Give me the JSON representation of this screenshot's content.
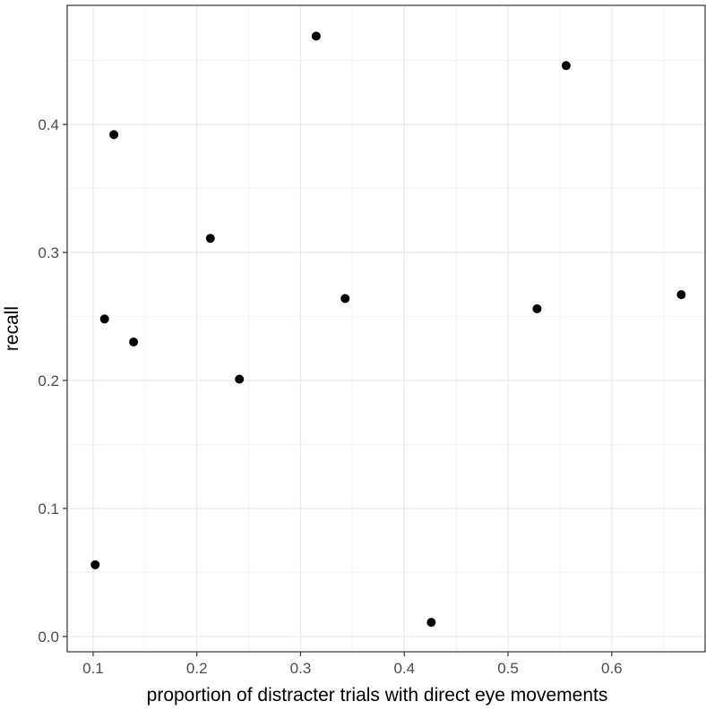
{
  "chart_data": {
    "type": "scatter",
    "xlabel": "proportion of distracter trials with direct eye movements",
    "ylabel": "recall",
    "xlim": [
      0.075,
      0.69
    ],
    "ylim": [
      -0.012,
      0.493
    ],
    "x_ticks": [
      0.1,
      0.2,
      0.3,
      0.4,
      0.5,
      0.6
    ],
    "x_tick_labels": [
      "0.1",
      "0.2",
      "0.3",
      "0.4",
      "0.5",
      "0.6"
    ],
    "y_ticks": [
      0.0,
      0.1,
      0.2,
      0.3,
      0.4
    ],
    "y_tick_labels": [
      "0.0",
      "0.1",
      "0.2",
      "0.3",
      "0.4"
    ],
    "grid": true,
    "points": [
      {
        "x": 0.102,
        "y": 0.056
      },
      {
        "x": 0.111,
        "y": 0.248
      },
      {
        "x": 0.12,
        "y": 0.392
      },
      {
        "x": 0.139,
        "y": 0.23
      },
      {
        "x": 0.213,
        "y": 0.311
      },
      {
        "x": 0.241,
        "y": 0.201
      },
      {
        "x": 0.315,
        "y": 0.469
      },
      {
        "x": 0.343,
        "y": 0.264
      },
      {
        "x": 0.426,
        "y": 0.011
      },
      {
        "x": 0.528,
        "y": 0.256
      },
      {
        "x": 0.556,
        "y": 0.446
      },
      {
        "x": 0.667,
        "y": 0.267
      }
    ],
    "colors": {
      "point": "#000000",
      "grid_major": "#ebebeb",
      "grid_minor": "#f5f5f5",
      "panel_border": "#333333"
    }
  }
}
